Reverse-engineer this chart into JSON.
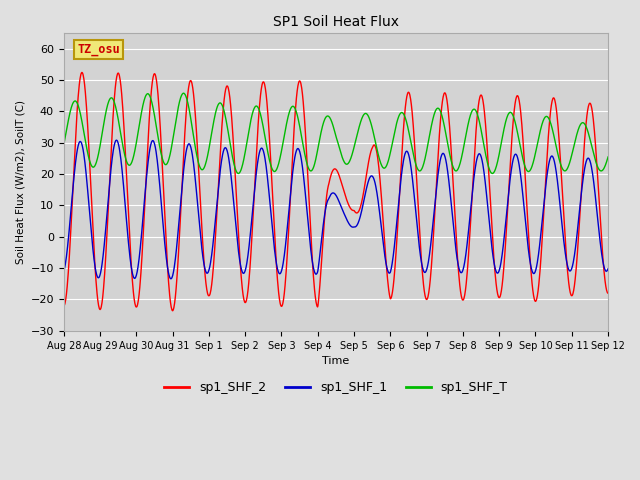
{
  "title": "SP1 Soil Heat Flux",
  "ylabel": "Soil Heat Flux (W/m2), SoilT (C)",
  "xlabel": "Time",
  "ylim": [
    -30,
    65
  ],
  "yticks": [
    -30,
    -20,
    -10,
    0,
    10,
    20,
    30,
    40,
    50,
    60
  ],
  "background_color": "#e0e0e0",
  "plot_bg_color": "#d3d3d3",
  "tz_label": "TZ_osu",
  "tz_box_color": "#f0e878",
  "tz_border_color": "#b8960c",
  "line_colors": {
    "sp1_SHF_2": "#ff0000",
    "sp1_SHF_1": "#0000cc",
    "sp1_SHF_T": "#00bb00"
  },
  "x_tick_labels": [
    "Aug 28",
    "Aug 29",
    "Aug 30",
    "Aug 31",
    "Sep 1",
    "Sep 2",
    "Sep 3",
    "Sep 4",
    "Sep 5",
    "Sep 6",
    "Sep 7",
    "Sep 8",
    "Sep 9",
    "Sep 10",
    "Sep 11",
    "Sep 12"
  ],
  "n_days": 15
}
